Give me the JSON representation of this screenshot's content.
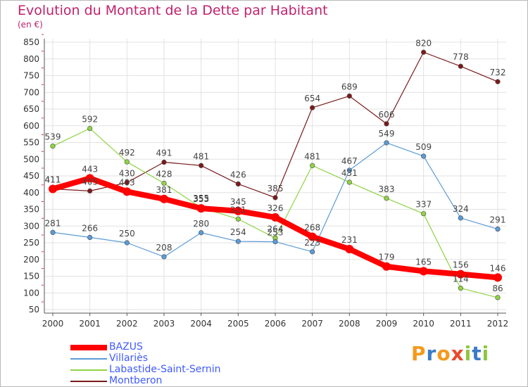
{
  "chart_data": {
    "type": "line",
    "title": "Evolution du Montant de la Dette par Habitant",
    "unit_label": "(en €)",
    "xlabel": "",
    "ylabel": "",
    "ylim": [
      50,
      850
    ],
    "yticks": [
      50,
      100,
      150,
      200,
      250,
      300,
      350,
      400,
      450,
      500,
      550,
      600,
      650,
      700,
      750,
      800,
      850
    ],
    "categories": [
      "2000",
      "2001",
      "2002",
      "2003",
      "2004",
      "2005",
      "2006",
      "2007",
      "2008",
      "2009",
      "2010",
      "2011",
      "2012"
    ],
    "grid": true,
    "legend_position": "bottom-left",
    "series": [
      {
        "name": "BAZUS",
        "color": "#ff0000",
        "values": [
          411,
          443,
          403,
          381,
          353,
          345,
          326,
          268,
          231,
          179,
          165,
          156,
          146
        ]
      },
      {
        "name": "Villariès",
        "color": "#5b9bd5",
        "values": [
          281,
          266,
          250,
          208,
          280,
          254,
          253,
          223,
          467,
          549,
          509,
          324,
          291
        ]
      },
      {
        "name": "Labastide-Saint-Sernin",
        "color": "#8fd444",
        "values": [
          539,
          592,
          492,
          428,
          355,
          321,
          264,
          481,
          431,
          383,
          337,
          114,
          86
        ]
      },
      {
        "name": "Montberon",
        "color": "#7b1a1a",
        "values": [
          411,
          405,
          430,
          491,
          481,
          426,
          385,
          654,
          689,
          606,
          820,
          778,
          732
        ]
      }
    ]
  },
  "logo": {
    "letters": [
      "P",
      "r",
      "o",
      "x",
      "i",
      "t",
      "i"
    ],
    "colors": [
      "#f39a1e",
      "#3a7cc8",
      "#f39a1e",
      "#e84b2b",
      "#8dc63f",
      "#3a7cc8",
      "#8dc63f"
    ]
  }
}
